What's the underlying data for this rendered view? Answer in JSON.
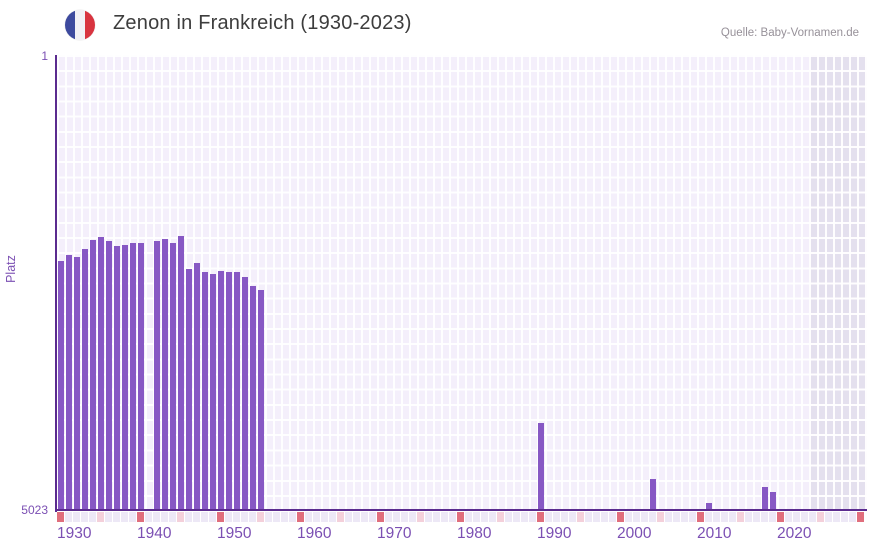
{
  "header": {
    "title": "Zenon in Frankreich (1930-2023)",
    "source": "Quelle: Baby-Vornamen.de",
    "flag_icon": {
      "name": "france-flag-icon",
      "blue": "#3d4a9e",
      "white": "#f2f0f5",
      "red": "#d8343f"
    }
  },
  "chart_data": {
    "type": "bar",
    "title": "Zenon in Frankreich (1930-2023)",
    "xlabel": "",
    "ylabel": "Platz",
    "y_axis": {
      "top_tick_label": "1",
      "bottom_tick_label": "5023",
      "min": 1,
      "max": 5023,
      "inverted": true,
      "grid": true
    },
    "x_axis": {
      "tick_labels": [
        "1930",
        "1940",
        "1950",
        "1960",
        "1970",
        "1980",
        "1990",
        "2000",
        "2010",
        "2020"
      ],
      "domain_start": 1930,
      "domain_end": 2031,
      "data_end": 2023,
      "grid": true
    },
    "legend": "none",
    "series": [
      {
        "name": "Platz",
        "points": [
          {
            "year": 1930,
            "rank": 2275
          },
          {
            "year": 1931,
            "rank": 2210
          },
          {
            "year": 1932,
            "rank": 2230
          },
          {
            "year": 1933,
            "rank": 2140
          },
          {
            "year": 1934,
            "rank": 2040
          },
          {
            "year": 1935,
            "rank": 2010
          },
          {
            "year": 1936,
            "rank": 2055
          },
          {
            "year": 1937,
            "rank": 2110
          },
          {
            "year": 1938,
            "rank": 2100
          },
          {
            "year": 1939,
            "rank": 2075
          },
          {
            "year": 1940,
            "rank": 2075
          },
          {
            "year": 1942,
            "rank": 2055
          },
          {
            "year": 1943,
            "rank": 2030
          },
          {
            "year": 1944,
            "rank": 2075
          },
          {
            "year": 1945,
            "rank": 2000
          },
          {
            "year": 1946,
            "rank": 2365
          },
          {
            "year": 1947,
            "rank": 2295
          },
          {
            "year": 1948,
            "rank": 2395
          },
          {
            "year": 1949,
            "rank": 2415
          },
          {
            "year": 1950,
            "rank": 2390
          },
          {
            "year": 1951,
            "rank": 2400
          },
          {
            "year": 1952,
            "rank": 2400
          },
          {
            "year": 1953,
            "rank": 2450
          },
          {
            "year": 1954,
            "rank": 2550
          },
          {
            "year": 1955,
            "rank": 2595
          },
          {
            "year": 1990,
            "rank": 4060
          },
          {
            "year": 2004,
            "rank": 4680
          },
          {
            "year": 2011,
            "rank": 4945
          },
          {
            "year": 2018,
            "rank": 4770
          },
          {
            "year": 2019,
            "rank": 4825
          }
        ]
      }
    ]
  },
  "colors": {
    "bar": "#8758c4",
    "axis_line": "#5b2b8f",
    "tick_text": "#7b4fb3",
    "plot_bg": "#f4effb",
    "future_band": "#e4e0ee",
    "grid_line": "#ffffff",
    "title_text": "#3d3d3d",
    "source_text": "#979199",
    "strip_decade": "#e06e7c",
    "strip_half_decade": "#f4d0da",
    "strip_default": "#ede8f6"
  }
}
